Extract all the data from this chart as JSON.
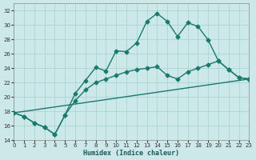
{
  "xlabel": "Humidex (Indice chaleur)",
  "bg_color": "#cce8e8",
  "grid_color": "#aad4d4",
  "line_color": "#1a7a6e",
  "xlim": [
    0,
    23
  ],
  "ylim": [
    14,
    33
  ],
  "xticks": [
    0,
    1,
    2,
    3,
    4,
    5,
    6,
    7,
    8,
    9,
    10,
    11,
    12,
    13,
    14,
    15,
    16,
    17,
    18,
    19,
    20,
    21,
    22,
    23
  ],
  "yticks": [
    14,
    16,
    18,
    20,
    22,
    24,
    26,
    28,
    30,
    32
  ],
  "line1_x": [
    0,
    1,
    2,
    3,
    4,
    5,
    6,
    7,
    8,
    9,
    10,
    11,
    12,
    13,
    14,
    15,
    16,
    17,
    18,
    19,
    20,
    21,
    22,
    23
  ],
  "line1_y": [
    17.8,
    17.3,
    16.4,
    15.8,
    14.8,
    17.5,
    20.5,
    22.3,
    24.1,
    23.6,
    26.4,
    26.3,
    27.5,
    30.5,
    31.6,
    30.5,
    28.4,
    30.3,
    29.8,
    27.9,
    25.0,
    23.8,
    22.7,
    22.5
  ],
  "line2_x": [
    0,
    1,
    2,
    3,
    4,
    5,
    6,
    7,
    8,
    9,
    10,
    11,
    12,
    13,
    14,
    15,
    16,
    17,
    18,
    19,
    20,
    21,
    22,
    23
  ],
  "line2_y": [
    17.8,
    17.3,
    16.4,
    15.8,
    14.8,
    17.5,
    19.5,
    21.0,
    22.0,
    22.5,
    23.0,
    23.5,
    23.8,
    24.0,
    24.2,
    23.0,
    22.5,
    23.5,
    24.0,
    24.5,
    25.0,
    23.8,
    22.7,
    22.5
  ],
  "line3_x": [
    0,
    23
  ],
  "line3_y": [
    17.8,
    22.5
  ],
  "marker_size": 2.5,
  "line_width": 1.0,
  "xlabel_fontsize": 6,
  "tick_fontsize": 5
}
